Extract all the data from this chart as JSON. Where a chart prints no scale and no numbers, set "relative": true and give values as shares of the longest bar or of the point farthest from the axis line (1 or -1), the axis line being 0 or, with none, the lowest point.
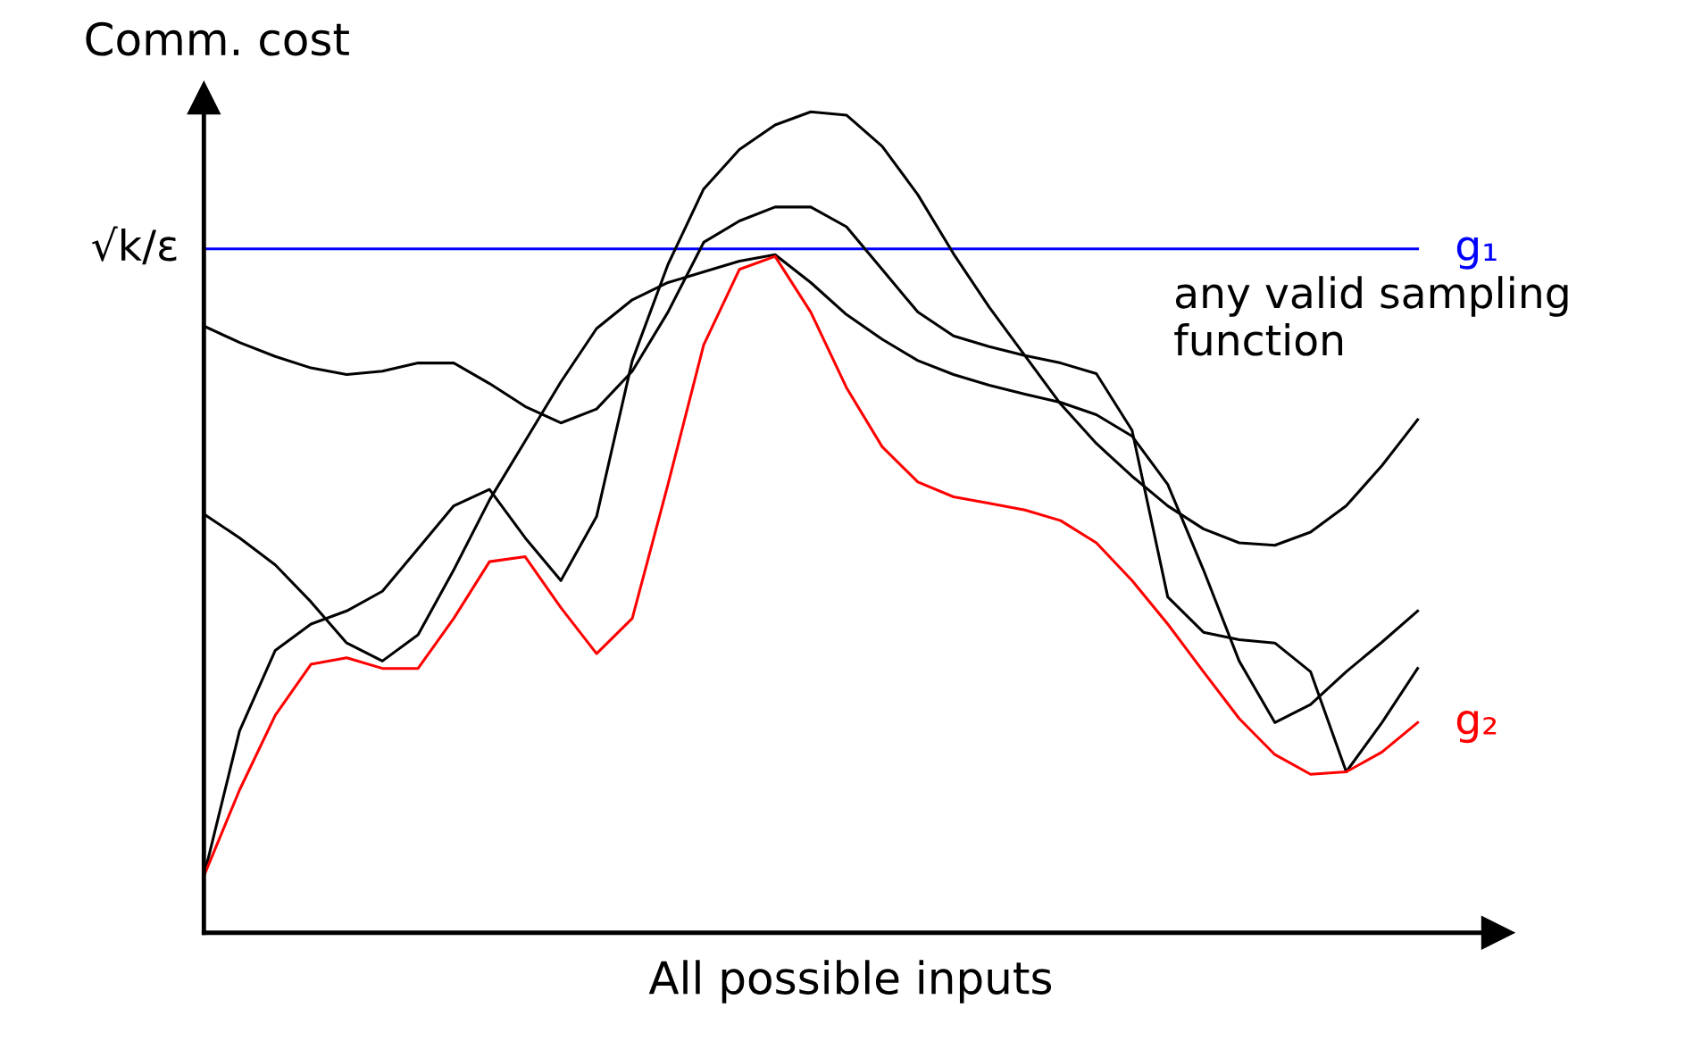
{
  "chart_data": {
    "type": "line",
    "relative": true,
    "xlabel": "All possible inputs",
    "ylabel": "Comm. cost",
    "categories": [
      null,
      null,
      null,
      null,
      null,
      null,
      null,
      null,
      null,
      null,
      null,
      null,
      null,
      null,
      null,
      null,
      null,
      null,
      null,
      null,
      null,
      null,
      null,
      null,
      null,
      null,
      null,
      null,
      null,
      null,
      null,
      null,
      null,
      null,
      null
    ],
    "series": [
      {
        "name": "g₁",
        "color": "#0000ff",
        "values": [
          0.833,
          0.833,
          0.833,
          0.833,
          0.833,
          0.833,
          0.833,
          0.833,
          0.833,
          0.833,
          0.833,
          0.833,
          0.833,
          0.833,
          0.833,
          0.833,
          0.833,
          0.833,
          0.833,
          0.833,
          0.833,
          0.833,
          0.833,
          0.833,
          0.833,
          0.833,
          0.833,
          0.833,
          0.833,
          0.833,
          0.833,
          0.833,
          0.833,
          0.833,
          0.833
        ]
      },
      {
        "color": "#000000",
        "values": [
          0.739,
          0.719,
          0.702,
          0.688,
          0.68,
          0.684,
          0.694,
          0.694,
          0.669,
          0.641,
          0.621,
          0.638,
          0.684,
          0.756,
          0.841,
          0.867,
          0.884,
          0.884,
          0.86,
          0.808,
          0.756,
          0.727,
          0.714,
          0.703,
          0.694,
          0.681,
          0.612,
          0.409,
          0.366,
          0.357,
          0.353,
          0.318,
          0.196,
          0.256,
          0.322
        ]
      },
      {
        "color": "#000000",
        "values": [
          0.069,
          0.246,
          0.344,
          0.376,
          0.392,
          0.416,
          0.468,
          0.52,
          0.54,
          0.481,
          0.429,
          0.507,
          0.697,
          0.814,
          0.906,
          0.954,
          0.984,
          1.0,
          0.996,
          0.958,
          0.899,
          0.827,
          0.762,
          0.703,
          0.644,
          0.596,
          0.556,
          0.52,
          0.492,
          0.475,
          0.472,
          0.488,
          0.52,
          0.569,
          0.625
        ]
      },
      {
        "color": "#000000",
        "values": [
          0.51,
          0.481,
          0.448,
          0.403,
          0.353,
          0.331,
          0.363,
          0.442,
          0.527,
          0.599,
          0.671,
          0.736,
          0.771,
          0.792,
          0.805,
          0.818,
          0.826,
          0.792,
          0.753,
          0.723,
          0.697,
          0.68,
          0.667,
          0.656,
          0.646,
          0.631,
          0.605,
          0.546,
          0.442,
          0.331,
          0.256,
          0.278,
          0.318,
          0.354,
          0.392
        ]
      },
      {
        "name": "g₂",
        "color": "#ff0000",
        "values": [
          0.069,
          0.174,
          0.265,
          0.327,
          0.335,
          0.322,
          0.322,
          0.383,
          0.452,
          0.458,
          0.396,
          0.34,
          0.383,
          0.546,
          0.716,
          0.808,
          0.824,
          0.756,
          0.664,
          0.592,
          0.549,
          0.531,
          0.523,
          0.515,
          0.502,
          0.475,
          0.429,
          0.376,
          0.318,
          0.261,
          0.217,
          0.193,
          0.196,
          0.22,
          0.256
        ]
      }
    ],
    "annotations": [
      "√k/ε",
      "any valid sampling function"
    ],
    "legend": false,
    "marker": "none",
    "line_style": "solid"
  }
}
